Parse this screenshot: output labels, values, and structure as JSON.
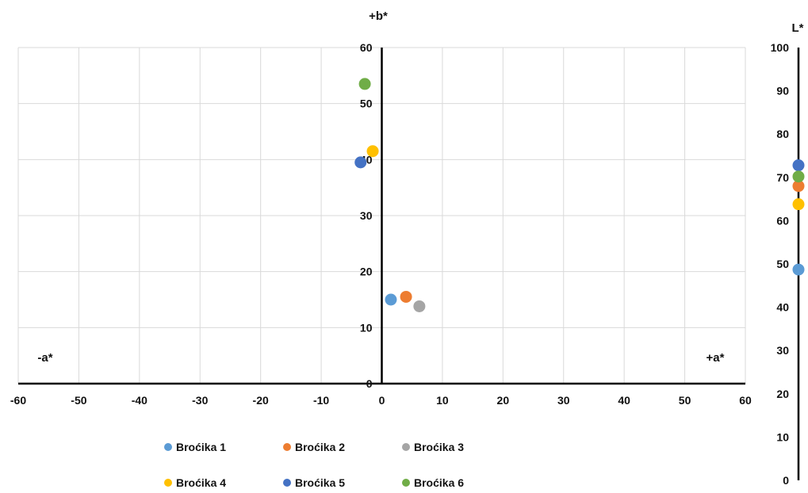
{
  "chart_data": {
    "type": "scatter",
    "ab_chart": {
      "xlabel_positive": "+a*",
      "xlabel_negative": "-a*",
      "ylabel": "+b*",
      "xlim": [
        -60,
        60
      ],
      "ylim": [
        0,
        60
      ],
      "x_ticks": [
        "-60",
        "-50",
        "-40",
        "-30",
        "-20",
        "-10",
        "0",
        "10",
        "20",
        "30",
        "40",
        "50",
        "60"
      ],
      "y_ticks": [
        "0",
        "10",
        "20",
        "30",
        "40",
        "50",
        "60"
      ],
      "grid": true
    },
    "l_chart": {
      "ylabel": "L*",
      "ylim": [
        0,
        100
      ],
      "y_ticks": [
        "0",
        "10",
        "20",
        "30",
        "40",
        "50",
        "60",
        "70",
        "80",
        "90",
        "100"
      ]
    },
    "legend_position": "bottom-left",
    "series": [
      {
        "name": "Broćika 1",
        "color": "#5B9BD5",
        "a": 1.5,
        "b": 15.0,
        "L": 48.7
      },
      {
        "name": "Broćika 2",
        "color": "#ED7D31",
        "a": 4.0,
        "b": 15.5,
        "L": 68.0
      },
      {
        "name": "Broćika 3",
        "color": "#A5A5A5",
        "a": 6.2,
        "b": 13.8,
        "L": null
      },
      {
        "name": "Broćika 4",
        "color": "#FFC000",
        "a": -1.5,
        "b": 41.5,
        "L": 63.8
      },
      {
        "name": "Broćika 5",
        "color": "#4472C4",
        "a": -3.5,
        "b": 39.5,
        "L": 72.8
      },
      {
        "name": "Broćika 6",
        "color": "#70AD47",
        "a": -2.8,
        "b": 53.5,
        "L": 70.2
      }
    ]
  }
}
